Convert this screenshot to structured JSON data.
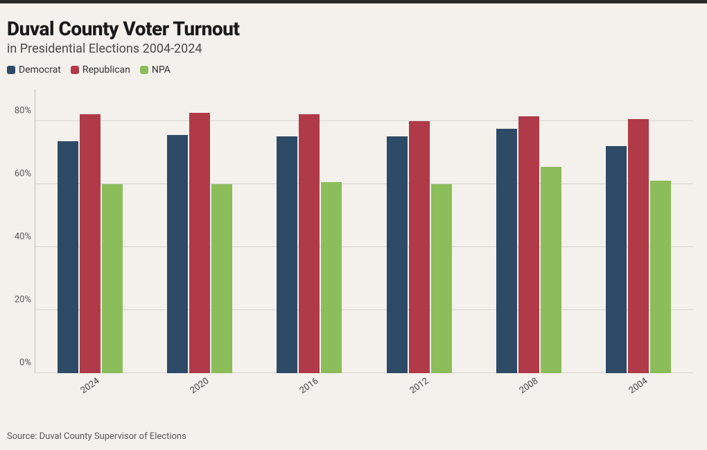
{
  "title": "Duval County Voter Turnout",
  "subtitle": "in Presidential Elections 2004-2024",
  "source": "Source: Duval County Supervisor of Elections",
  "chart": {
    "type": "bar",
    "background_color": "#f4f1ec",
    "grid_color": "#d8d5cf",
    "axis_color": "#bdbdbd",
    "title_fontsize": 28,
    "subtitle_fontsize": 18,
    "label_fontsize": 13,
    "y_axis": {
      "min": 0,
      "max": 90,
      "ticks": [
        0,
        20,
        40,
        60,
        80
      ],
      "format": "percent"
    },
    "series": [
      {
        "name": "Democrat",
        "color": "#2d4a66"
      },
      {
        "name": "Republican",
        "color": "#b03a48"
      },
      {
        "name": "NPA",
        "color": "#8bbd5a"
      }
    ],
    "categories": [
      "2024",
      "2020",
      "2016",
      "2012",
      "2008",
      "2004"
    ],
    "data": {
      "Democrat": [
        73.5,
        75.5,
        75.0,
        75.0,
        77.5,
        72.0
      ],
      "Republican": [
        82.0,
        82.5,
        82.0,
        80.0,
        81.5,
        80.5
      ],
      "NPA": [
        60.0,
        60.0,
        60.5,
        60.0,
        65.5,
        61.0
      ]
    }
  },
  "legend_labels": {
    "democrat": "Democrat",
    "republican": "Republican",
    "npa": "NPA"
  }
}
